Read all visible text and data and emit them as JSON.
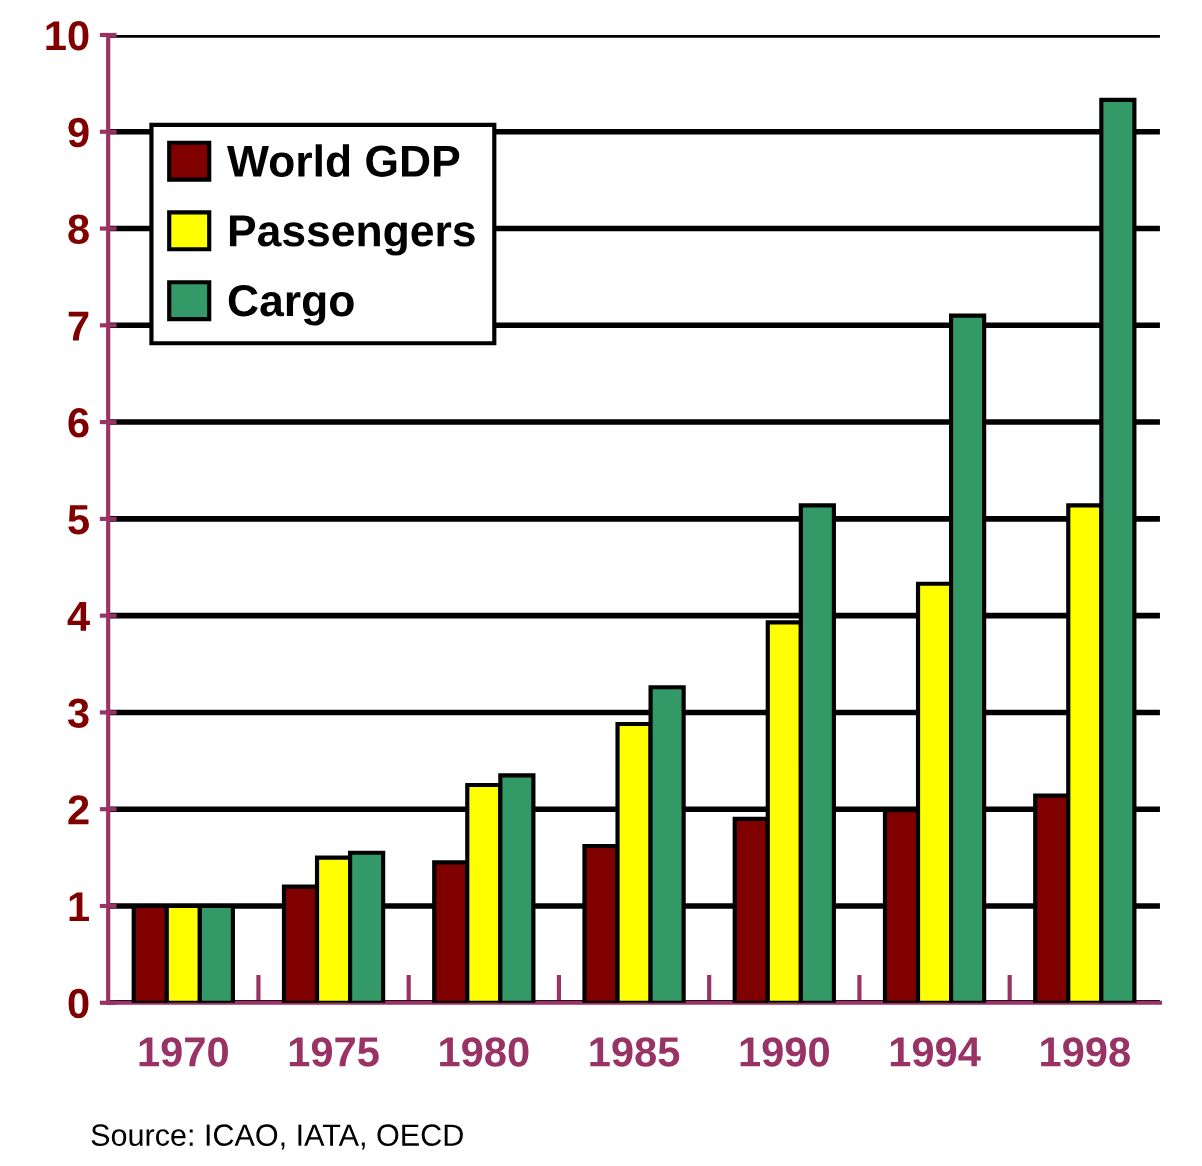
{
  "chart_data": {
    "type": "bar",
    "categories": [
      "1970",
      "1975",
      "1980",
      "1985",
      "1990",
      "1994",
      "1998"
    ],
    "series": [
      {
        "name": "World GDP",
        "color": "#800000",
        "values": [
          1,
          1.2,
          1.45,
          1.62,
          1.9,
          1.99,
          2.14
        ]
      },
      {
        "name": "Passengers",
        "color": "#ffff00",
        "values": [
          1,
          1.5,
          2.25,
          2.88,
          3.93,
          4.33,
          5.14
        ]
      },
      {
        "name": "Cargo",
        "color": "#339966",
        "values": [
          1,
          1.55,
          2.35,
          3.26,
          5.14,
          7.1,
          9.33
        ]
      }
    ],
    "ylim": [
      0,
      10
    ],
    "yticks": [
      0,
      1,
      2,
      3,
      4,
      5,
      6,
      7,
      8,
      9,
      10
    ],
    "grid": "y",
    "legend": "top left",
    "annotations": [
      "Source: ICAO, IATA, OECD"
    ]
  }
}
